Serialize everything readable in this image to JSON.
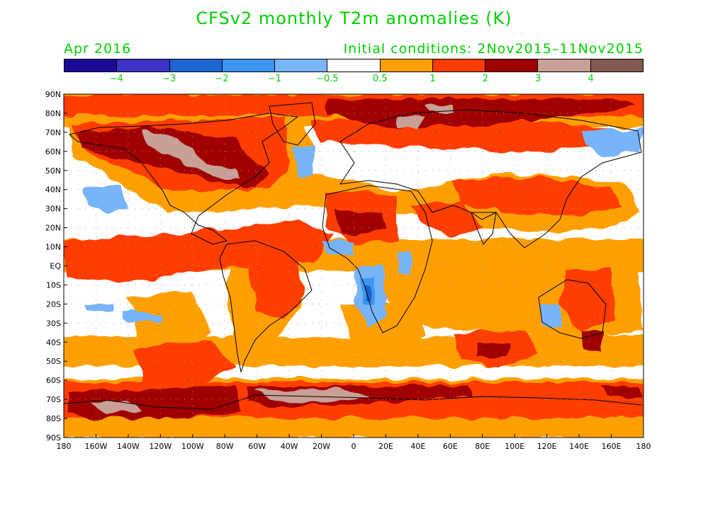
{
  "title": "CFSv2 monthly T2m anomalies (K)",
  "valid_month": "Apr 2016",
  "initial_conditions": "Initial conditions: 2Nov2015–11Nov2015",
  "colorbar": {
    "colors": [
      "#1a0a96",
      "#3c32c8",
      "#1e64d2",
      "#3c96f0",
      "#78b4fa",
      "#ffffff",
      "#ffa000",
      "#ff3c00",
      "#a00000",
      "#c8a096",
      "#825a50"
    ],
    "labels": [
      "−4",
      "−3",
      "−2",
      "−1",
      "−0.5",
      "0.5",
      "1",
      "2",
      "3",
      "4"
    ]
  },
  "map_data": {
    "projection": "cylindrical equidistant",
    "lon_range": [
      -180,
      180
    ],
    "lat_range": [
      -90,
      90
    ],
    "lat_ticks": [
      "90N",
      "80N",
      "70N",
      "60N",
      "50N",
      "40N",
      "30N",
      "20N",
      "10N",
      "EQ",
      "10S",
      "20S",
      "30S",
      "40S",
      "50S",
      "60S",
      "70S",
      "80S",
      "90S"
    ],
    "lon_ticks": [
      "180",
      "160W",
      "140W",
      "120W",
      "100W",
      "80W",
      "60W",
      "40W",
      "20W",
      "0",
      "20E",
      "40E",
      "60E",
      "80E",
      "100E",
      "120E",
      "140E",
      "160E",
      "180"
    ],
    "grid": "dotted",
    "variable": "2-m temperature anomaly",
    "units": "K"
  }
}
